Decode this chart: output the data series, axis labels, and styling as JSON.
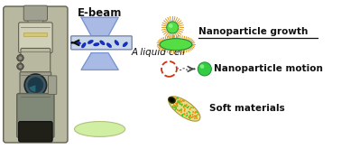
{
  "background_color": "#ffffff",
  "labels": {
    "ebeam": "E-beam",
    "liquid_cell": "A liquid cell",
    "nanoparticle_growth": "Nanoparticle growth",
    "nanoparticle_motion": "Nanoparticle motion",
    "soft_materials": "Soft materials"
  },
  "colors": {
    "lens_blue_fill": "#9aaee0",
    "lens_blue_edge": "#7090cc",
    "liquid_cell_bg": "#c8d8e8",
    "liquid_cell_border": "#7888aa",
    "particle_green": "#33cc44",
    "particle_green_dark": "#229933",
    "particle_highlight": "#99ff99",
    "circle_red": "#cc3311",
    "dot_trail": "#444444",
    "nanorod_yellow": "#e8cc44",
    "nanorod_green": "#44cc22",
    "nanorod_dark": "#223300",
    "nanorod_orange_dot": "#ee8800",
    "disk_green": "#ccee99",
    "disk_border": "#aabb77",
    "spiky_orange": "#dd9922",
    "spiky_green": "#55dd44",
    "text_dark": "#111111",
    "arrow_color": "#111111",
    "cell_particle": "#1133cc",
    "microscope_body": "#b8b8a0",
    "microscope_dark": "#606050",
    "microscope_mid": "#a0a090",
    "microscope_light": "#d0d0b8",
    "microscope_black": "#202018"
  },
  "figsize": [
    3.78,
    1.65
  ],
  "dpi": 100
}
